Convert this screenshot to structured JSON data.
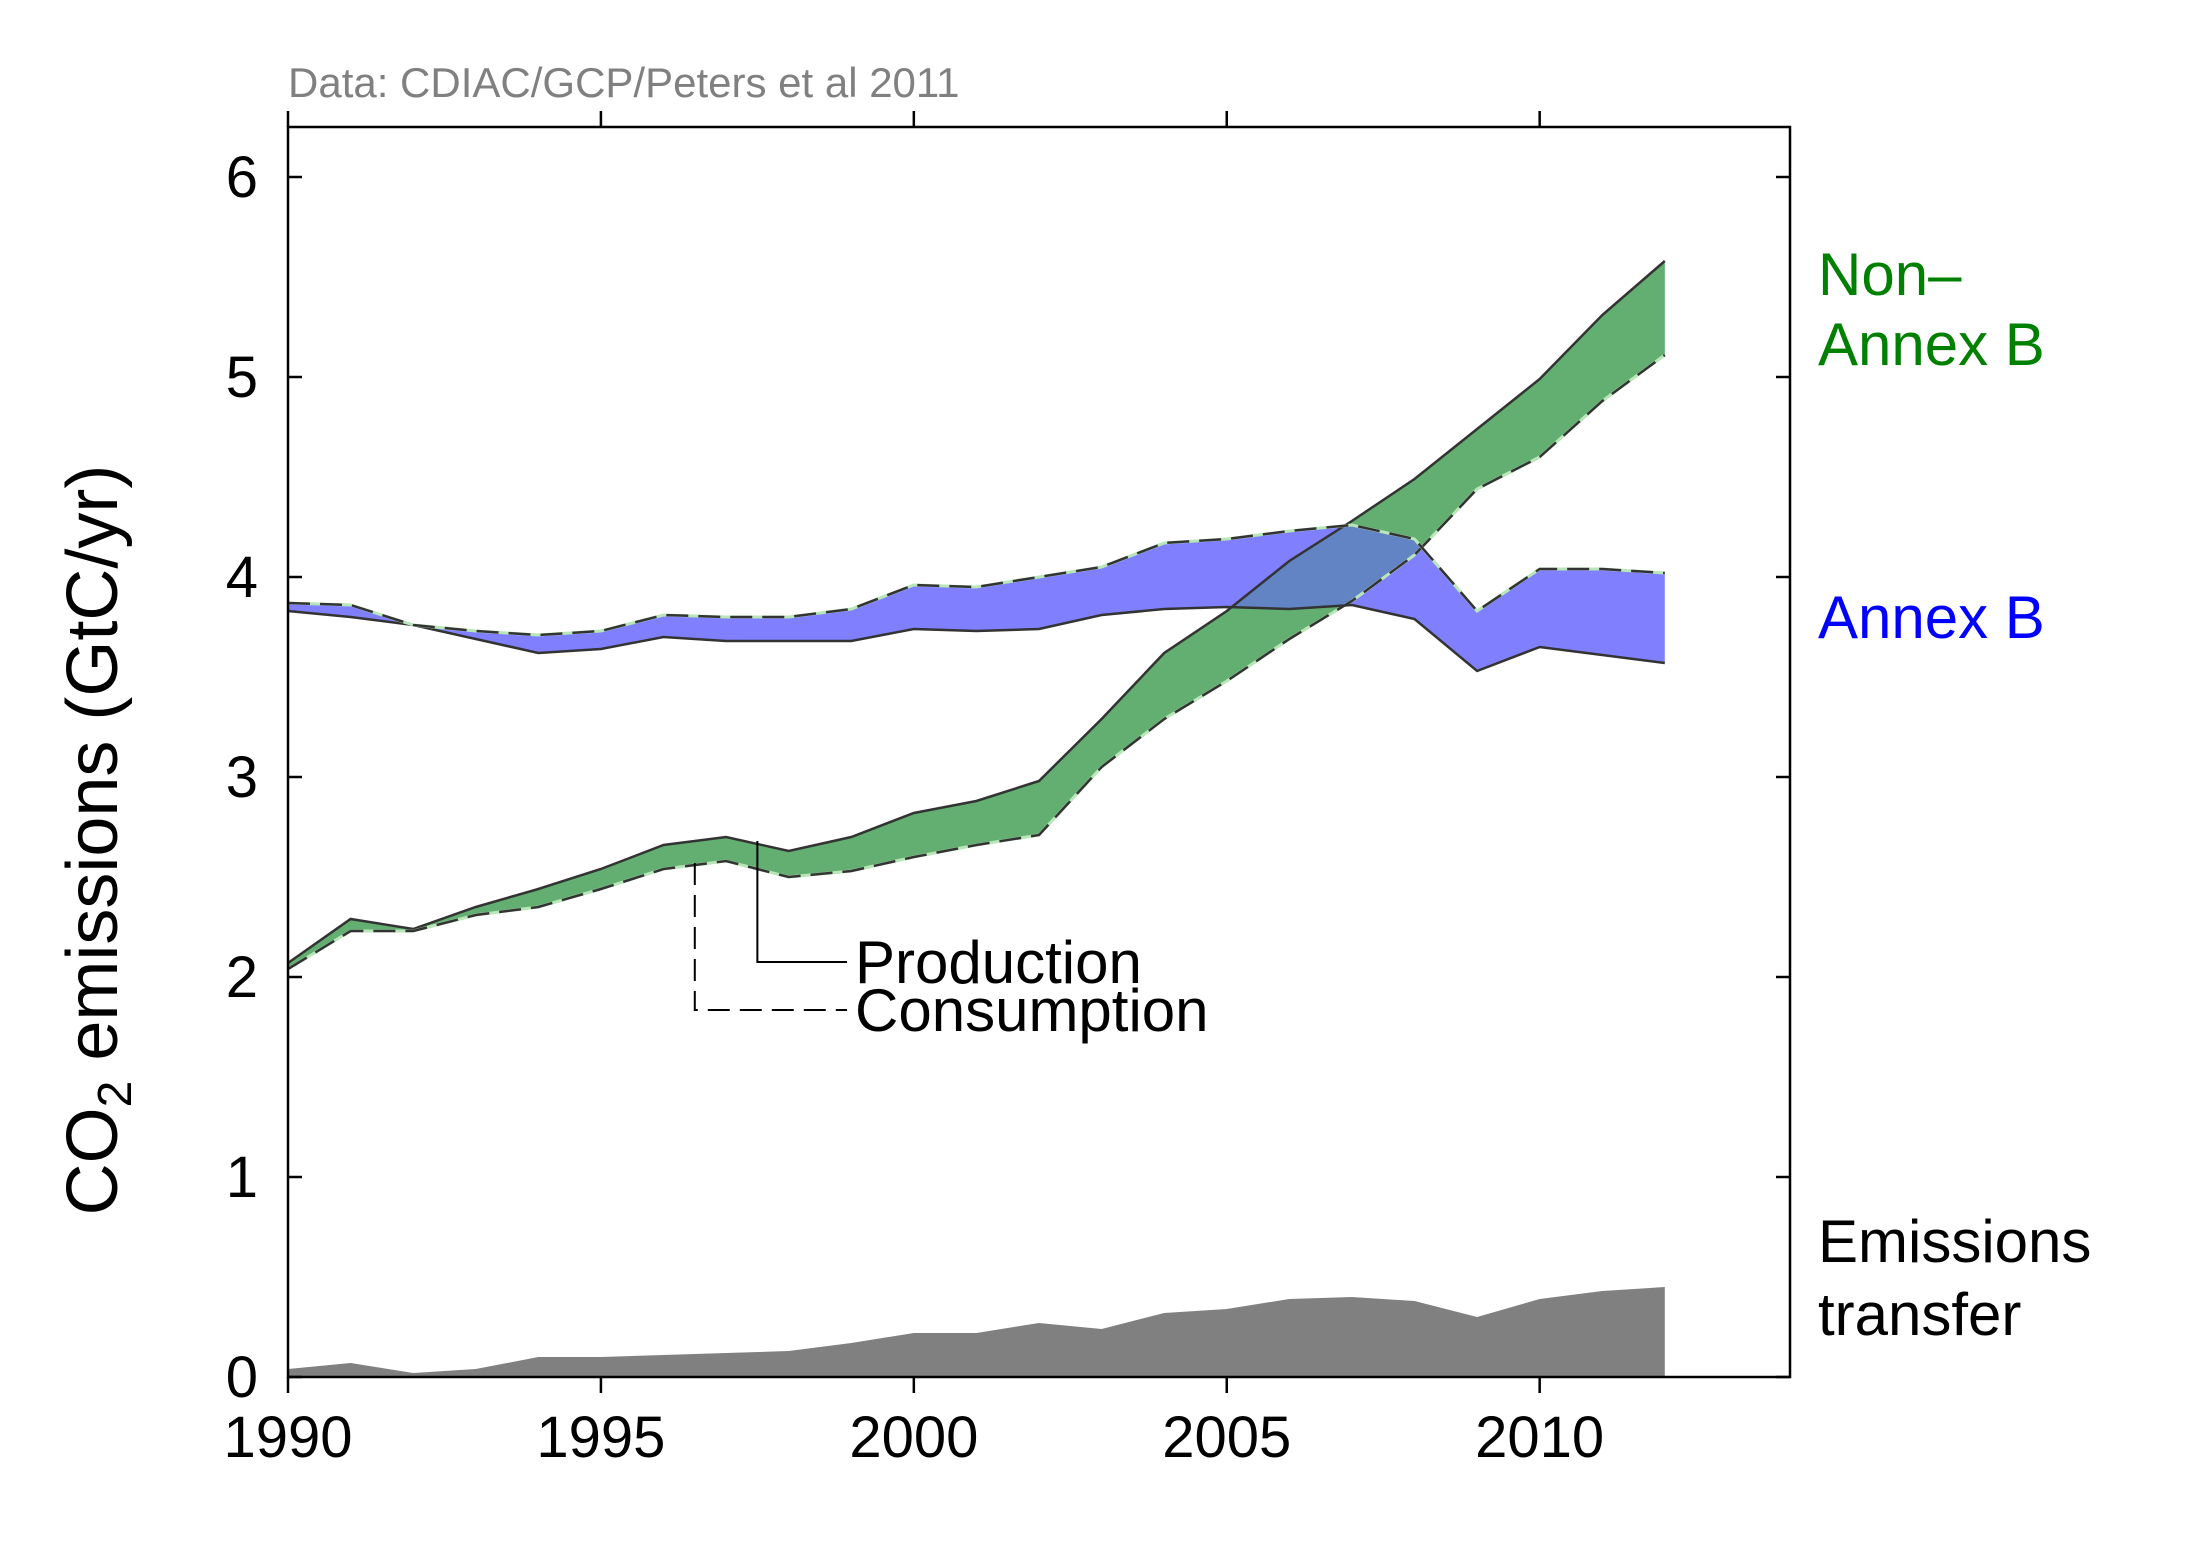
{
  "chart_data": {
    "type": "area",
    "source": "Data: CDIAC/GCP/Peters et al 2011",
    "ylabel": {
      "prefix": "CO",
      "subscript": "2",
      "suffix": " emissions (GtC/yr)"
    },
    "xlabel": "",
    "xlim": [
      1990,
      2014
    ],
    "ylim": [
      0,
      6.25
    ],
    "x_ticks": [
      1990,
      1995,
      2000,
      2005,
      2010
    ],
    "y_ticks": [
      0,
      1,
      2,
      3,
      4,
      5,
      6
    ],
    "grid": false,
    "x": [
      1990,
      1991,
      1992,
      1993,
      1994,
      1995,
      1996,
      1997,
      1998,
      1999,
      2000,
      2001,
      2002,
      2003,
      2004,
      2005,
      2006,
      2007,
      2008,
      2009,
      2010,
      2011,
      2012
    ],
    "series": [
      {
        "key": "annex_b",
        "labels": [
          "Annex B"
        ],
        "color": "#8080ff",
        "text_color": "#0000ff",
        "production": [
          3.83,
          3.8,
          3.76,
          3.69,
          3.62,
          3.64,
          3.7,
          3.68,
          3.68,
          3.68,
          3.74,
          3.73,
          3.74,
          3.81,
          3.84,
          3.85,
          3.84,
          3.86,
          3.79,
          3.53,
          3.65,
          3.61,
          3.57
        ],
        "consumption": [
          3.87,
          3.86,
          3.76,
          3.73,
          3.71,
          3.73,
          3.81,
          3.8,
          3.8,
          3.84,
          3.96,
          3.95,
          4.0,
          4.05,
          4.17,
          4.19,
          4.23,
          4.26,
          4.19,
          3.83,
          4.04,
          4.04,
          4.02
        ]
      },
      {
        "key": "non_annex_b",
        "labels": [
          "Non–",
          "Annex B"
        ],
        "color": "#80c080",
        "text_color": "#008000",
        "production": [
          2.07,
          2.29,
          2.24,
          2.35,
          2.44,
          2.54,
          2.66,
          2.7,
          2.63,
          2.7,
          2.82,
          2.88,
          2.98,
          3.29,
          3.62,
          3.83,
          4.08,
          4.28,
          4.49,
          4.74,
          4.99,
          5.31,
          5.58
        ],
        "consumption": [
          2.04,
          2.23,
          2.23,
          2.31,
          2.35,
          2.44,
          2.54,
          2.58,
          2.5,
          2.53,
          2.6,
          2.66,
          2.71,
          3.05,
          3.29,
          3.48,
          3.69,
          3.88,
          4.11,
          4.44,
          4.6,
          4.88,
          5.11
        ]
      },
      {
        "key": "transfer",
        "labels": [
          "Emissions",
          "transfer"
        ],
        "color": "#808080",
        "text_color": "#000000",
        "values": [
          0.04,
          0.07,
          0.02,
          0.04,
          0.1,
          0.1,
          0.11,
          0.12,
          0.13,
          0.17,
          0.22,
          0.22,
          0.27,
          0.24,
          0.32,
          0.34,
          0.39,
          0.4,
          0.38,
          0.3,
          0.39,
          0.43,
          0.45
        ]
      }
    ],
    "legend": {
      "production": "Production",
      "consumption": "Consumption"
    }
  }
}
